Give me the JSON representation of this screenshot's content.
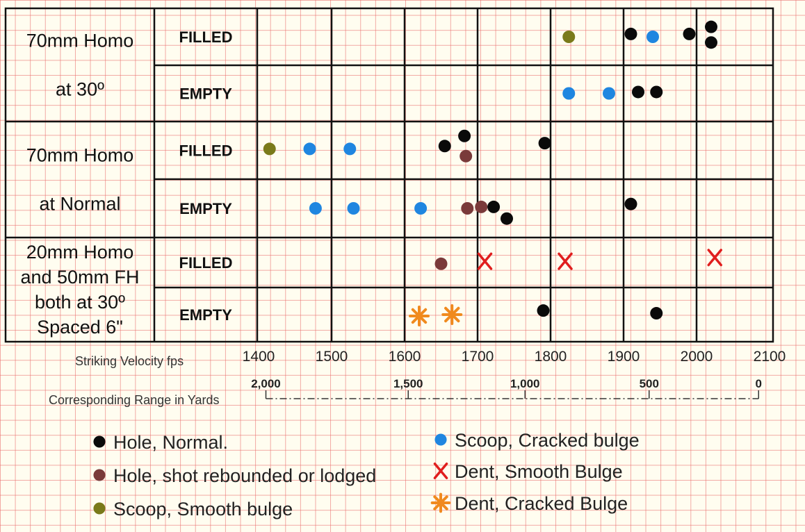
{
  "chart_data": {
    "type": "scatter",
    "x_axis_label": "Striking Velocity fps",
    "x_ticks": [
      1400,
      1500,
      1600,
      1700,
      1800,
      1900,
      2000,
      2100
    ],
    "xlim": [
      1400,
      2100
    ],
    "range_axis": {
      "label": "Corresponding Range in Yards",
      "ticks": [
        {
          "label": "2,000",
          "velocity": 1410
        },
        {
          "label": "1,500",
          "velocity": 1605
        },
        {
          "label": "1,000",
          "velocity": 1765
        },
        {
          "label": "500",
          "velocity": 1935
        },
        {
          "label": "0",
          "velocity": 2085
        }
      ]
    },
    "groups": [
      {
        "label_lines": [
          "70mm Homo",
          "at 30º"
        ],
        "rows": [
          "FILLED",
          "EMPTY"
        ]
      },
      {
        "label_lines": [
          "70mm Homo",
          "at Normal"
        ],
        "rows": [
          "FILLED",
          "EMPTY"
        ]
      },
      {
        "label_lines": [
          "20mm Homo",
          "and 50mm FH",
          "both at 30º",
          "Spaced 6\""
        ],
        "rows": [
          "FILLED",
          "EMPTY"
        ]
      }
    ],
    "legend": [
      {
        "key": "hole_normal",
        "label": "Hole, Normal.",
        "marker": "dot",
        "color": "#0a0a0a"
      },
      {
        "key": "hole_rebound",
        "label": "Hole, shot rebounded or lodged",
        "marker": "dot",
        "color": "#7a3a3a"
      },
      {
        "key": "scoop_smooth",
        "label": "Scoop, Smooth bulge",
        "marker": "dot",
        "color": "#7a7a1a"
      },
      {
        "key": "scoop_cracked",
        "label": "Scoop, Cracked bulge",
        "marker": "dot",
        "color": "#1f86e0"
      },
      {
        "key": "dent_smooth",
        "label": "Dent, Smooth Bulge",
        "marker": "x",
        "color": "#e01e1e"
      },
      {
        "key": "dent_cracked",
        "label": "Dent, Cracked Bulge",
        "marker": "star",
        "color": "#f08a1e"
      }
    ],
    "points": [
      {
        "group": 0,
        "row": 0,
        "velocity": 1825,
        "offset": 0,
        "key": "scoop_smooth"
      },
      {
        "group": 0,
        "row": 0,
        "velocity": 1910,
        "offset": -0.1,
        "key": "hole_normal"
      },
      {
        "group": 0,
        "row": 0,
        "velocity": 1940,
        "offset": 0,
        "key": "scoop_cracked"
      },
      {
        "group": 0,
        "row": 0,
        "velocity": 1990,
        "offset": -0.1,
        "key": "hole_normal"
      },
      {
        "group": 0,
        "row": 0,
        "velocity": 2020,
        "offset": -0.35,
        "key": "hole_normal"
      },
      {
        "group": 0,
        "row": 0,
        "velocity": 2020,
        "offset": 0.2,
        "key": "hole_normal"
      },
      {
        "group": 0,
        "row": 1,
        "velocity": 1825,
        "offset": 0,
        "key": "scoop_cracked"
      },
      {
        "group": 0,
        "row": 1,
        "velocity": 1880,
        "offset": 0,
        "key": "scoop_cracked"
      },
      {
        "group": 0,
        "row": 1,
        "velocity": 1920,
        "offset": -0.05,
        "key": "hole_normal"
      },
      {
        "group": 0,
        "row": 1,
        "velocity": 1945,
        "offset": -0.05,
        "key": "hole_normal"
      },
      {
        "group": 1,
        "row": 0,
        "velocity": 1415,
        "offset": -0.05,
        "key": "scoop_smooth"
      },
      {
        "group": 1,
        "row": 0,
        "velocity": 1470,
        "offset": -0.05,
        "key": "scoop_cracked"
      },
      {
        "group": 1,
        "row": 0,
        "velocity": 1525,
        "offset": -0.05,
        "key": "scoop_cracked"
      },
      {
        "group": 1,
        "row": 0,
        "velocity": 1655,
        "offset": -0.15,
        "key": "hole_normal"
      },
      {
        "group": 1,
        "row": 0,
        "velocity": 1682,
        "offset": -0.5,
        "key": "hole_normal"
      },
      {
        "group": 1,
        "row": 0,
        "velocity": 1684,
        "offset": 0.2,
        "key": "hole_rebound"
      },
      {
        "group": 1,
        "row": 0,
        "velocity": 1792,
        "offset": -0.25,
        "key": "hole_normal"
      },
      {
        "group": 1,
        "row": 1,
        "velocity": 1478,
        "offset": 0,
        "key": "scoop_cracked"
      },
      {
        "group": 1,
        "row": 1,
        "velocity": 1530,
        "offset": 0,
        "key": "scoop_cracked"
      },
      {
        "group": 1,
        "row": 1,
        "velocity": 1622,
        "offset": 0,
        "key": "scoop_cracked"
      },
      {
        "group": 1,
        "row": 1,
        "velocity": 1686,
        "offset": 0,
        "key": "hole_rebound"
      },
      {
        "group": 1,
        "row": 1,
        "velocity": 1705,
        "offset": -0.05,
        "key": "hole_rebound"
      },
      {
        "group": 1,
        "row": 1,
        "velocity": 1722,
        "offset": -0.05,
        "key": "hole_normal"
      },
      {
        "group": 1,
        "row": 1,
        "velocity": 1740,
        "offset": 0.35,
        "key": "hole_normal"
      },
      {
        "group": 1,
        "row": 1,
        "velocity": 1910,
        "offset": -0.15,
        "key": "hole_normal"
      },
      {
        "group": 2,
        "row": 0,
        "velocity": 1650,
        "offset": 0.05,
        "key": "hole_rebound"
      },
      {
        "group": 2,
        "row": 0,
        "velocity": 1710,
        "offset": -0.05,
        "key": "dent_smooth"
      },
      {
        "group": 2,
        "row": 0,
        "velocity": 1820,
        "offset": -0.05,
        "key": "dent_smooth"
      },
      {
        "group": 2,
        "row": 0,
        "velocity": 2025,
        "offset": -0.2,
        "key": "dent_smooth"
      },
      {
        "group": 2,
        "row": 1,
        "velocity": 1620,
        "offset": 0.05,
        "key": "dent_cracked"
      },
      {
        "group": 2,
        "row": 1,
        "velocity": 1665,
        "offset": 0,
        "key": "dent_cracked"
      },
      {
        "group": 2,
        "row": 1,
        "velocity": 1790,
        "offset": -0.15,
        "key": "hole_normal"
      },
      {
        "group": 2,
        "row": 1,
        "velocity": 1945,
        "offset": -0.05,
        "key": "hole_normal"
      }
    ]
  }
}
